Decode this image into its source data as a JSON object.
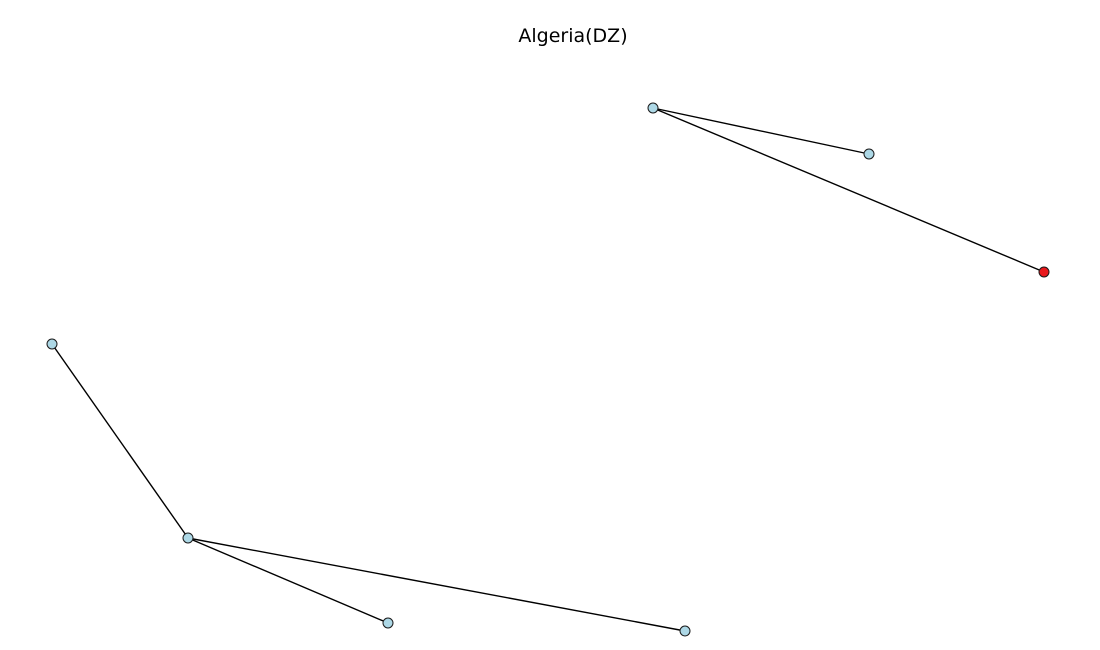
{
  "graph": {
    "title": "Algeria(DZ)",
    "colors": {
      "node_default": "#add8e6",
      "node_highlight": "#e8191c",
      "edge": "#000000",
      "node_outline": "#1a1a1a"
    },
    "nodes": [
      {
        "id": "n1",
        "highlighted": false
      },
      {
        "id": "n2",
        "highlighted": false
      },
      {
        "id": "n3",
        "highlighted": true
      },
      {
        "id": "n4",
        "highlighted": false
      },
      {
        "id": "n5",
        "highlighted": false
      },
      {
        "id": "n6",
        "highlighted": false
      },
      {
        "id": "n7",
        "highlighted": false
      }
    ],
    "edges": [
      {
        "source": "n1",
        "target": "n2"
      },
      {
        "source": "n1",
        "target": "n3"
      },
      {
        "source": "n4",
        "target": "n5"
      },
      {
        "source": "n5",
        "target": "n6"
      },
      {
        "source": "n5",
        "target": "n7"
      }
    ]
  }
}
